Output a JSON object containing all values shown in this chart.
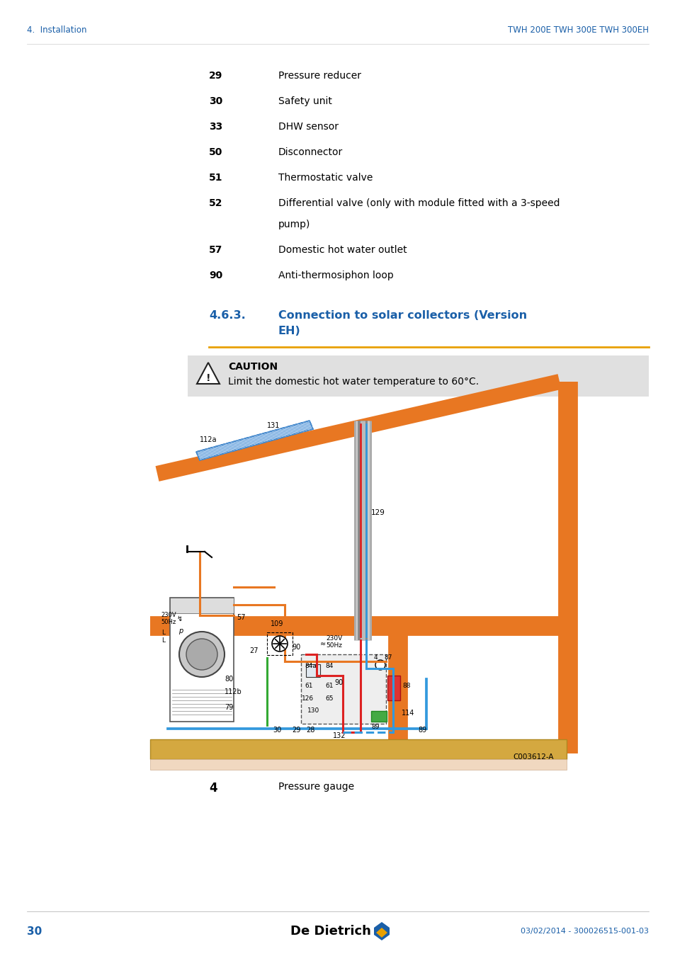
{
  "page_num": "30",
  "header_left": "4.  Installation",
  "header_right": "TWH 200E TWH 300E TWH 300EH",
  "footer_right": "03/02/2014 - 300026515-001-03",
  "header_color": "#1a5fa8",
  "blue_color": "#1a5fa8",
  "orange_color": "#e87722",
  "red_color": "#dd2222",
  "blue_pipe": "#3399dd",
  "green_pipe": "#33aa33",
  "gray_color": "#888888",
  "caution_bg": "#e0e0e0",
  "divider_color": "#e8a000",
  "text_color": "#000000",
  "bg_color": "#ffffff",
  "items": [
    {
      "num": "29",
      "desc": "Pressure reducer"
    },
    {
      "num": "30",
      "desc": "Safety unit"
    },
    {
      "num": "33",
      "desc": "DHW sensor"
    },
    {
      "num": "50",
      "desc": "Disconnector"
    },
    {
      "num": "51",
      "desc": "Thermostatic valve"
    },
    {
      "num": "52",
      "desc": "Differential valve (only with module fitted with a 3-speed pump)",
      "wrap": true
    },
    {
      "num": "57",
      "desc": "Domestic hot water outlet"
    },
    {
      "num": "90",
      "desc": "Anti-thermosiphon loop"
    }
  ],
  "section_num": "4.6.3.",
  "section_title_1": "Connection to solar collectors (Version",
  "section_title_2": "EH)",
  "caution_title": "CAUTION",
  "caution_text": "Limit the domestic hot water temperature to 60°C.",
  "bottom_num": "4",
  "bottom_desc": "Pressure gauge"
}
